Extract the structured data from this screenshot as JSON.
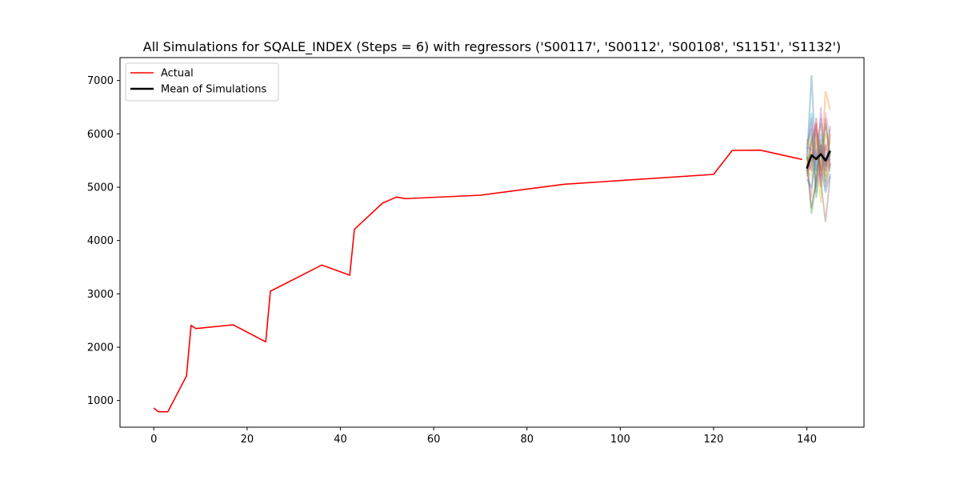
{
  "chart_data": {
    "type": "line",
    "title": "All Simulations for SQALE_INDEX (Steps = 6) with regressors ('S00117', 'S00112', 'S00108', 'S1151', 'S1132')",
    "xlabel": "",
    "ylabel": "",
    "xlim": [
      -7.25,
      152.25
    ],
    "ylim": [
      500,
      7430
    ],
    "x_ticks": [
      0,
      20,
      40,
      60,
      80,
      100,
      120,
      140
    ],
    "y_ticks": [
      1000,
      2000,
      3000,
      4000,
      5000,
      6000,
      7000
    ],
    "grid": false,
    "legend": {
      "position": "top-left",
      "entries": [
        {
          "label": "Actual",
          "color": "#ff0000"
        },
        {
          "label": "Mean of Simulations",
          "color": "#000000"
        }
      ]
    },
    "series": [
      {
        "name": "Actual",
        "color": "#ff0000",
        "x": [
          0,
          1,
          3,
          7,
          8,
          9,
          17,
          24,
          25,
          36,
          42,
          43,
          49,
          52,
          54,
          70,
          88,
          120,
          124,
          130,
          139
        ],
        "y": [
          860,
          790,
          790,
          1460,
          2410,
          2350,
          2420,
          2100,
          3050,
          3540,
          3350,
          4210,
          4700,
          4815,
          4785,
          4850,
          5055,
          5240,
          5690,
          5695,
          5520
        ]
      },
      {
        "name": "Mean of Simulations",
        "color": "#000000",
        "x": [
          140,
          141,
          142,
          143,
          144,
          145
        ],
        "y": [
          5350,
          5600,
          5530,
          5620,
          5500,
          5680
        ]
      }
    ],
    "simulations": {
      "x": [
        140,
        141,
        142,
        143,
        144,
        145
      ],
      "alpha": 0.35,
      "palette": [
        "#1f77b4",
        "#ff7f0e",
        "#2ca02c",
        "#d62728",
        "#9467bd",
        "#8c564b",
        "#e377c2",
        "#7f7f7f",
        "#bcbd22",
        "#17becf"
      ],
      "runs": [
        [
          5520,
          7100,
          5300,
          5700,
          5400,
          5600
        ],
        [
          5400,
          5900,
          6000,
          5300,
          6800,
          6450
        ],
        [
          5600,
          4500,
          5200,
          5900,
          5100,
          5700
        ],
        [
          5300,
          5800,
          6200,
          5000,
          6300,
          5400
        ],
        [
          5700,
          6300,
          4900,
          6500,
          5300,
          5900
        ],
        [
          5200,
          5500,
          5700,
          5100,
          4350,
          5200
        ],
        [
          5450,
          4800,
          6100,
          5600,
          5700,
          6100
        ],
        [
          5800,
          6100,
          5000,
          5800,
          5500,
          5300
        ],
        [
          5350,
          5200,
          5900,
          4700,
          6000,
          5800
        ],
        [
          5650,
          6400,
          5300,
          6000,
          5600,
          5500
        ],
        [
          5150,
          5000,
          5600,
          5400,
          4900,
          5250
        ],
        [
          5900,
          5600,
          5800,
          6200,
          5200,
          6000
        ],
        [
          5250,
          6000,
          4800,
          5500,
          6200,
          5600
        ],
        [
          5550,
          5300,
          6300,
          5200,
          5800,
          5350
        ],
        [
          5750,
          5700,
          5500,
          6300,
          5400,
          5700
        ],
        [
          5400,
          4600,
          5100,
          5800,
          5000,
          5450
        ],
        [
          5600,
          6200,
          5400,
          5100,
          6400,
          5900
        ],
        [
          5300,
          5400,
          6100,
          5700,
          5300,
          6150
        ]
      ]
    }
  }
}
